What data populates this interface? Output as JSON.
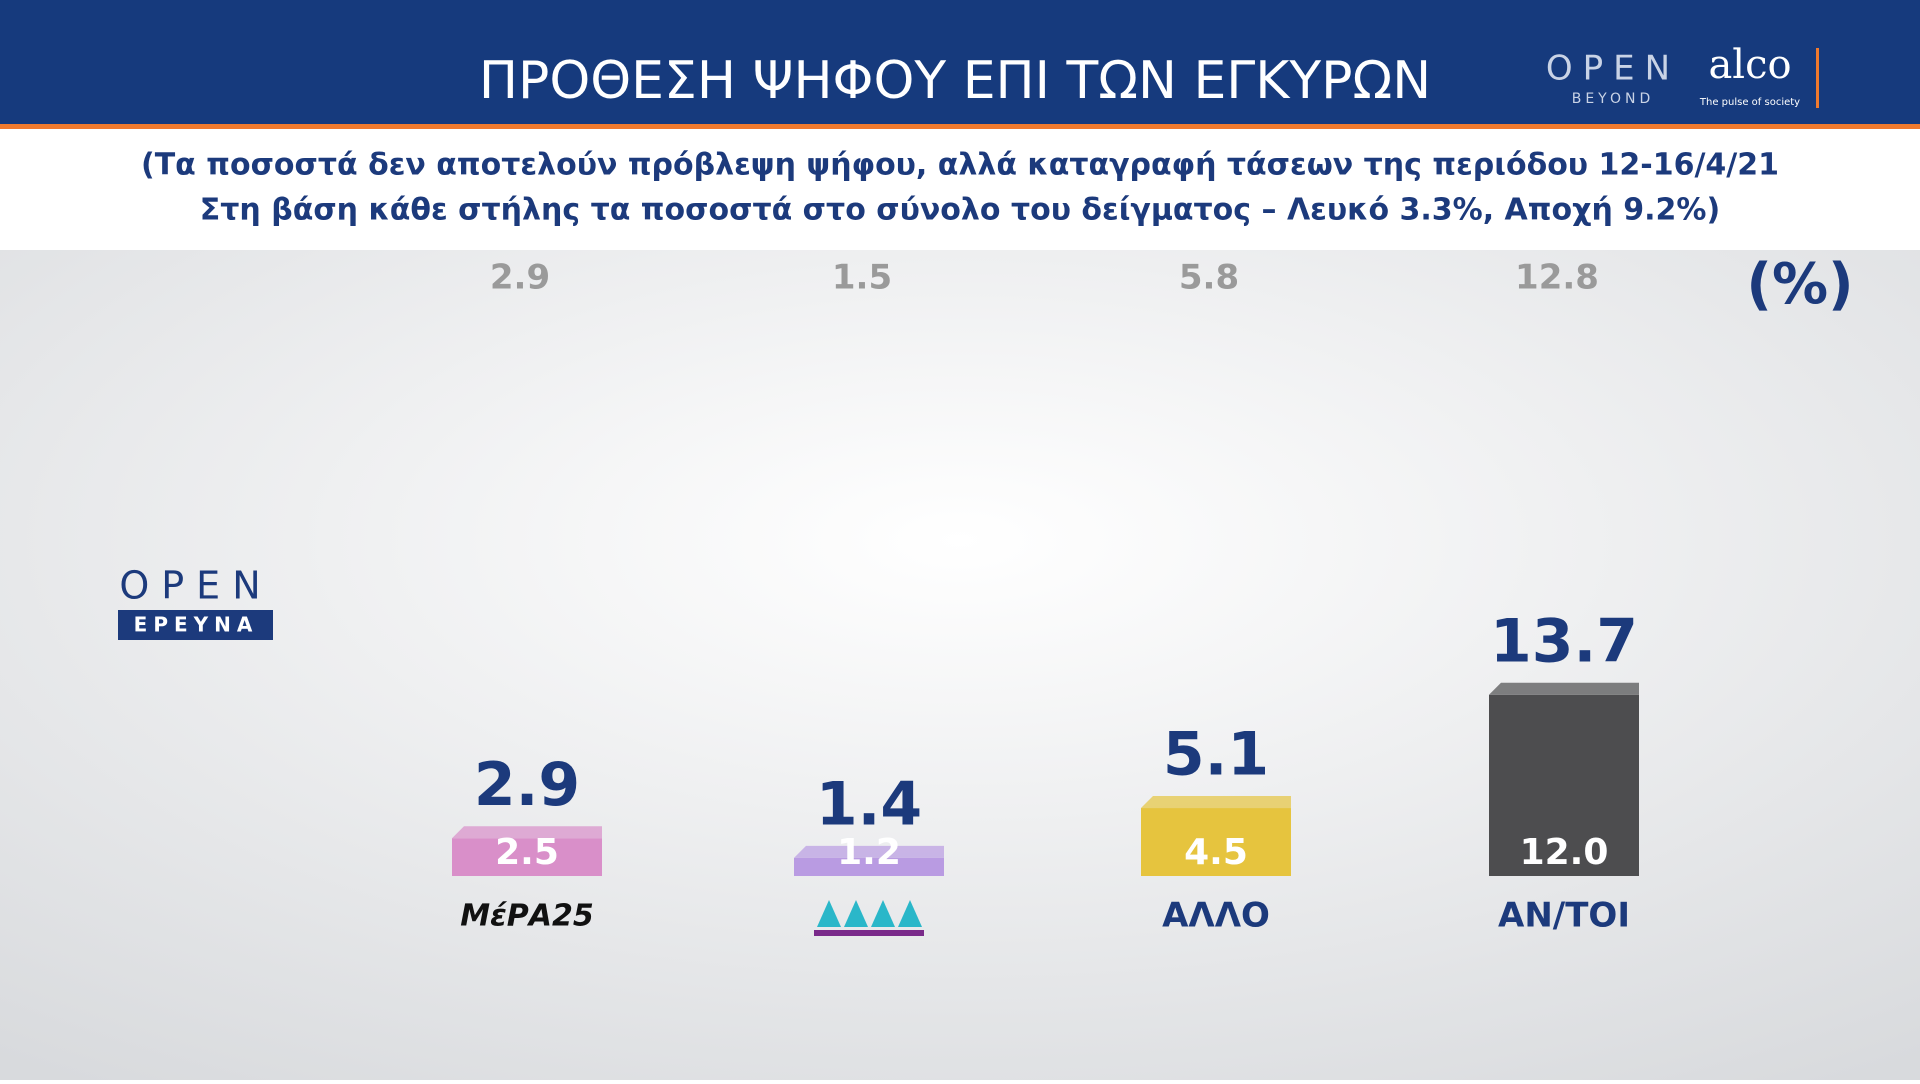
{
  "header": {
    "title": "ΠΡΟΘΕΣΗ ΨΗΦΟΥ ΕΠΙ ΤΩΝ ΕΓΚΥΡΩΝ",
    "brand": "OPEN",
    "brand_sub": "BEYOND",
    "partner": "alco",
    "partner_tagline": "The pulse of society"
  },
  "subtitle": [
    "(Τα ποσοστά δεν αποτελούν πρόβλεψη ψήφου, αλλά καταγραφή τάσεων της περιόδου 12-16/4/21",
    "Στη βάση κάθε στήλης τα ποσοστά στο σύνολο του δείγματος – Λευκό 3.3%, Αποχή 9.2%)"
  ],
  "side_logo": {
    "brand": "OPEN",
    "label": "ΕΡΕΥΝΑ"
  },
  "chart_data": {
    "type": "bar",
    "unit": "(%)",
    "categories": [
      "ΜέΡΑ25",
      null,
      "ΑΛΛΟ",
      "ΑΝ/ΤΟΙ"
    ],
    "colors": [
      "#d98fc9",
      "#b99be2",
      "#e6c43e",
      "#4d4d4f"
    ],
    "series": [
      {
        "values": [
          2.5,
          1.2,
          4.5,
          12.0
        ],
        "value_labels": [
          "2.5",
          "1.2",
          "4.5",
          "12.0"
        ]
      },
      {
        "values": [
          2.9,
          1.4,
          5.1,
          13.7
        ],
        "color": "#1c3a7c"
      },
      {
        "values": [
          2.9,
          1.5,
          5.8,
          12.8
        ],
        "color": "#9a9a9a"
      }
    ]
  }
}
